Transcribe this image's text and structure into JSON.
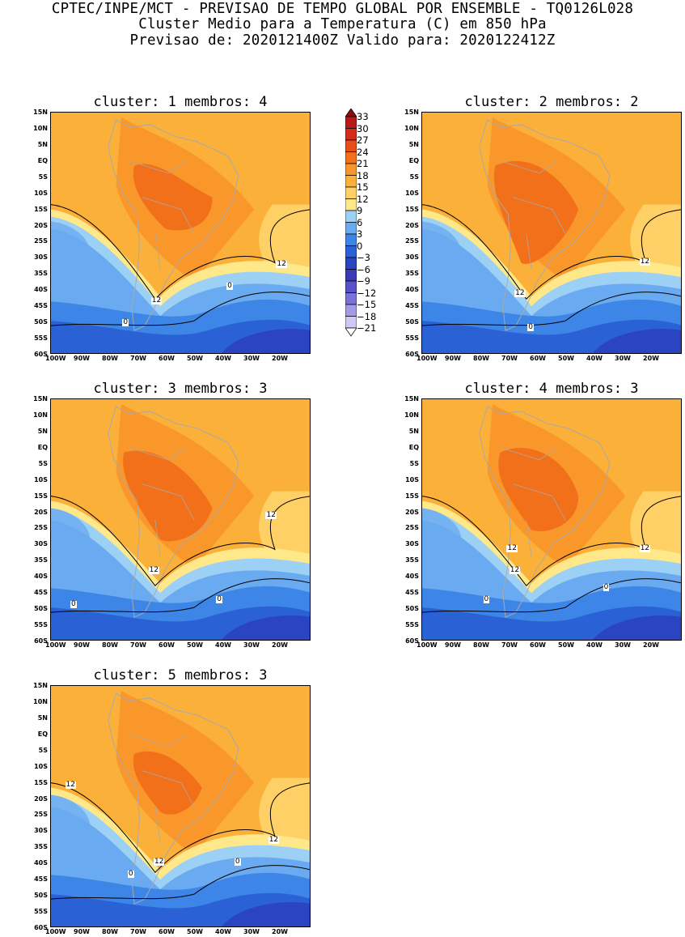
{
  "header": {
    "line1": "CPTEC/INPE/MCT - PREVISAO DE TEMPO GLOBAL POR ENSEMBLE - TQ0126L028",
    "line2": "Cluster Medio para a Temperatura (C) em 850 hPa",
    "line3": "Previsao de: 2020121400Z   Valido para: 2020122412Z"
  },
  "lat_labels": [
    "15N",
    "10N",
    "5N",
    "EQ",
    "5S",
    "10S",
    "15S",
    "20S",
    "25S",
    "30S",
    "35S",
    "40S",
    "45S",
    "50S",
    "55S",
    "60S"
  ],
  "lon_labels": [
    "100W",
    "90W",
    "80W",
    "70W",
    "60W",
    "50W",
    "40W",
    "30W",
    "20W"
  ],
  "colorbar": {
    "levels": [
      "33",
      "30",
      "27",
      "24",
      "21",
      "18",
      "15",
      "12",
      "9",
      "6",
      "3",
      "0",
      "-3",
      "-6",
      "-9",
      "-12",
      "-15",
      "-18",
      "-21"
    ],
    "colors": [
      "#8b0d0d",
      "#b81a1a",
      "#d62a1a",
      "#ea4e17",
      "#f2701a",
      "#f9952a",
      "#fbb03a",
      "#fed066",
      "#ffe88a",
      "#9dd0f5",
      "#6aaaf0",
      "#3d85e6",
      "#2a62d6",
      "#2a44c2",
      "#3a3ab8",
      "#5a52c8",
      "#7a72d8",
      "#a49ae6",
      "#cfc8f2"
    ]
  },
  "panels": [
    {
      "title": "cluster: 1  membros: 4",
      "contour_labels": [
        "12",
        "12",
        "0",
        "0"
      ]
    },
    {
      "title": "cluster: 2  membros: 2",
      "contour_labels": [
        "12",
        "12",
        "0"
      ]
    },
    {
      "title": "cluster: 3  membros: 3",
      "contour_labels": [
        "12",
        "12",
        "0",
        "0"
      ]
    },
    {
      "title": "cluster: 4  membros: 3",
      "contour_labels": [
        "12",
        "12",
        "12",
        "0",
        "0"
      ]
    },
    {
      "title": "cluster: 5  membros: 3",
      "contour_labels": [
        "12",
        "12",
        "12",
        "0",
        "0"
      ]
    }
  ]
}
